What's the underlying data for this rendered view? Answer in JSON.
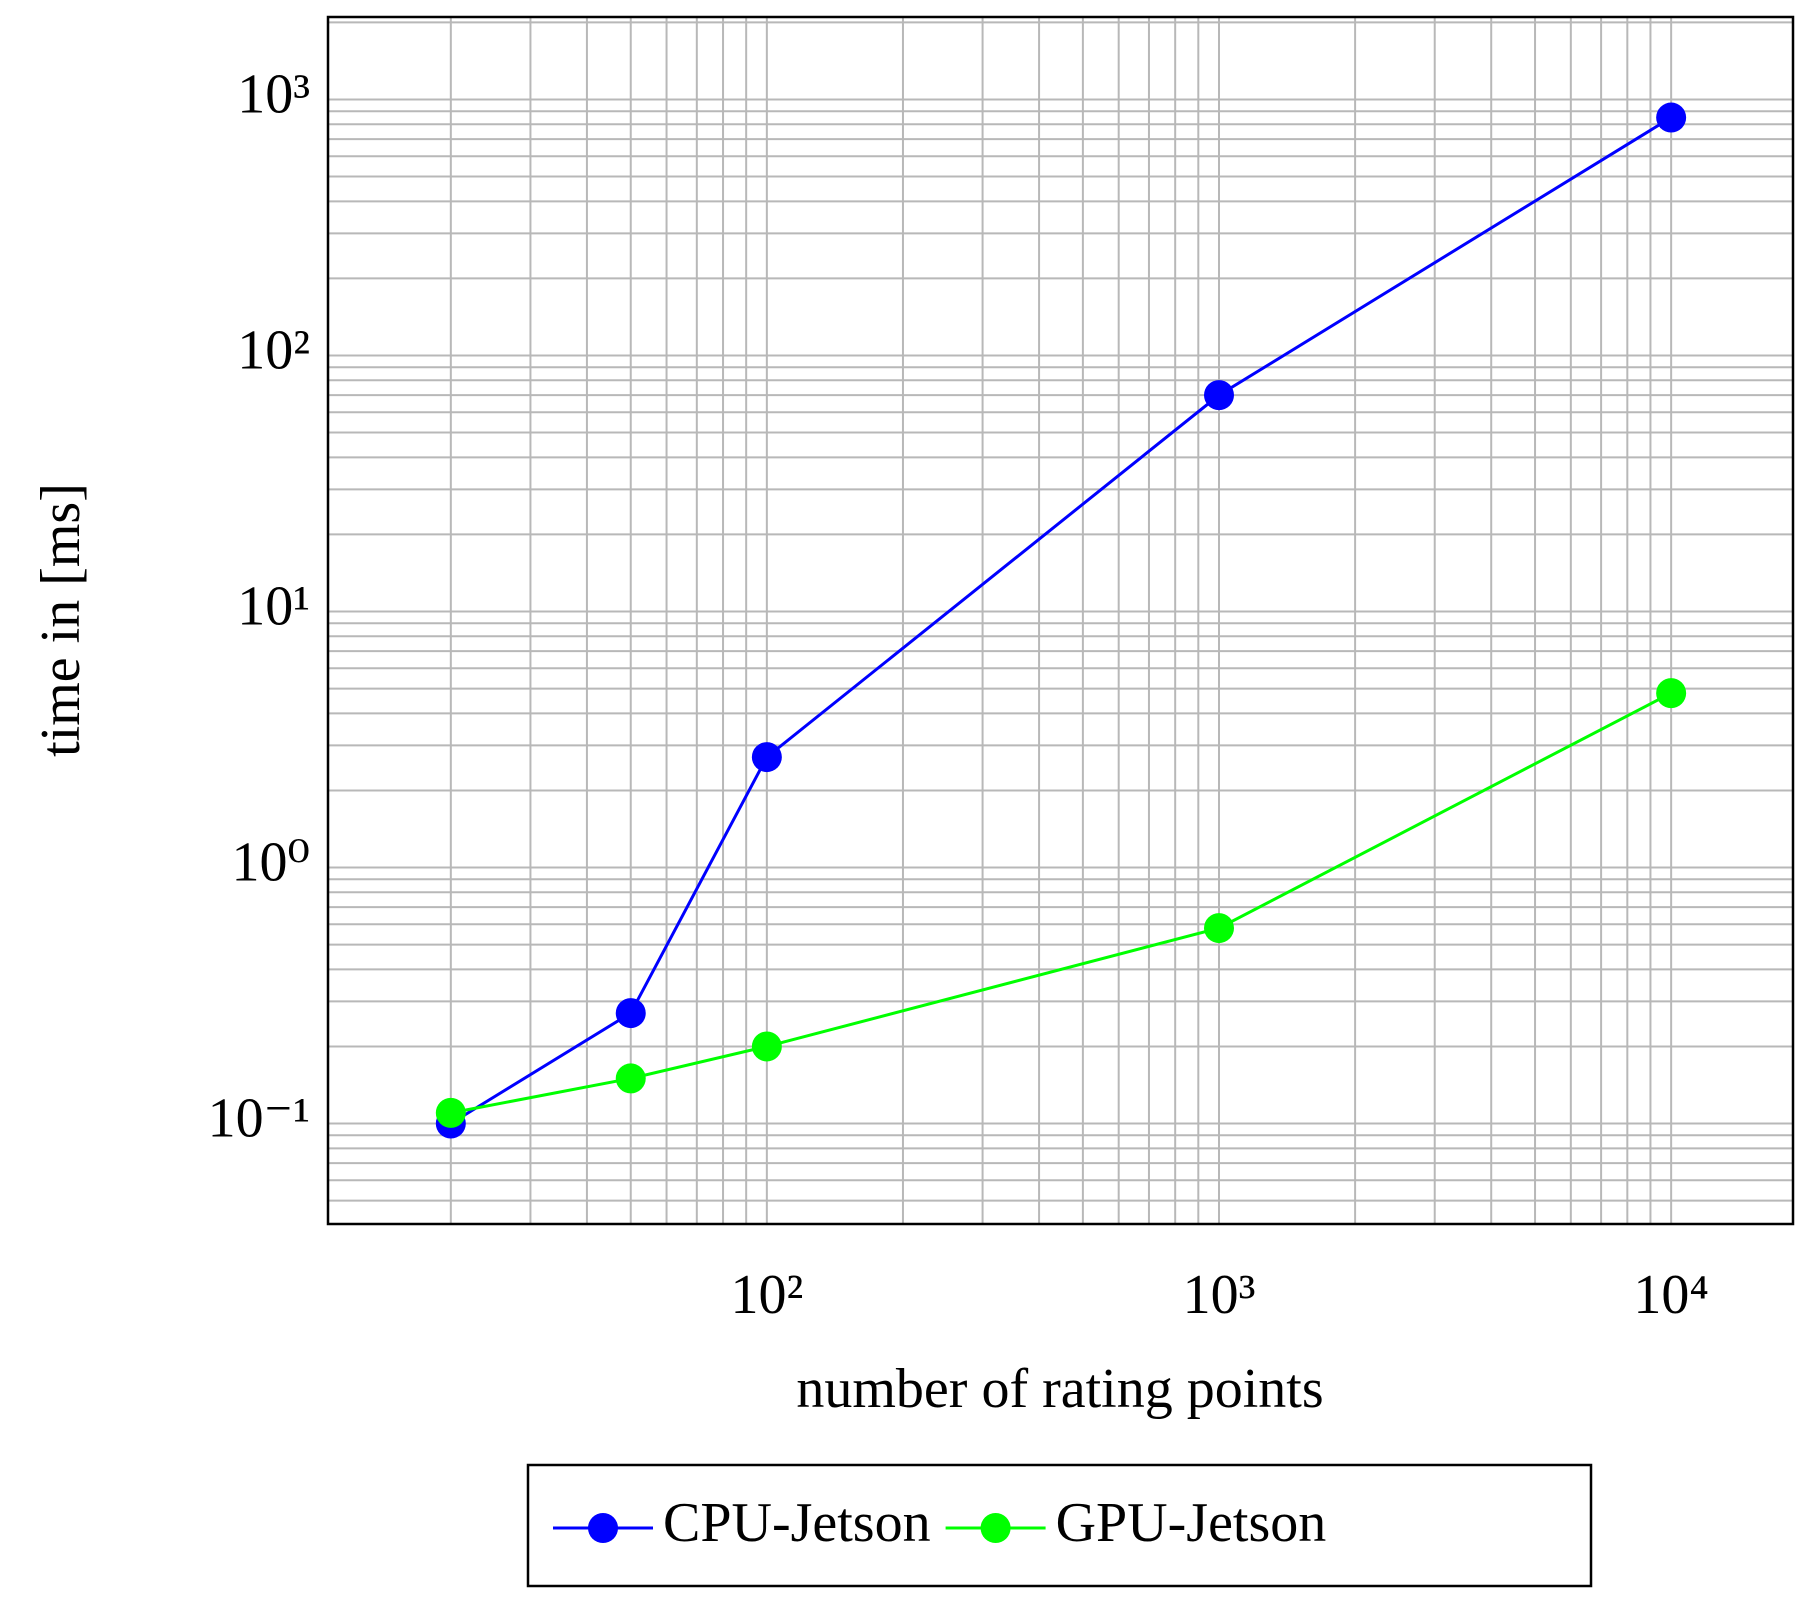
{
  "chart_data": {
    "type": "line",
    "xlabel": "number of rating points",
    "ylabel": "time in [ms]",
    "xscale": "log",
    "yscale": "log",
    "grid": true,
    "x": [
      20,
      50,
      100,
      1000,
      10000
    ],
    "series": [
      {
        "name": "CPU-Jetson",
        "color": "#0000ff",
        "values": [
          0.1,
          0.27,
          2.7,
          70,
          850
        ]
      },
      {
        "name": "GPU-Jetson",
        "color": "#00ff00",
        "values": [
          0.11,
          0.15,
          0.2,
          0.58,
          4.8
        ]
      }
    ],
    "xlim": [
      10.7,
      18600
    ],
    "ylim": [
      0.0405,
      2100
    ],
    "xticks": [
      {
        "value": 100,
        "label": "10²"
      },
      {
        "value": 1000,
        "label": "10³"
      },
      {
        "value": 10000,
        "label": "10⁴"
      }
    ],
    "yticks": [
      {
        "value": 0.1,
        "label": "10⁻¹"
      },
      {
        "value": 1,
        "label": "10⁰"
      },
      {
        "value": 10,
        "label": "10¹"
      },
      {
        "value": 100,
        "label": "10²"
      },
      {
        "value": 1000,
        "label": "10³"
      }
    ],
    "xminorticks": [
      20,
      30,
      40,
      50,
      60,
      70,
      80,
      90,
      200,
      300,
      400,
      500,
      600,
      700,
      800,
      900,
      2000,
      3000,
      4000,
      5000,
      6000,
      7000,
      8000,
      9000
    ],
    "yminorticks": [
      0.05,
      0.06,
      0.07,
      0.08,
      0.09,
      0.2,
      0.3,
      0.4,
      0.5,
      0.6,
      0.7,
      0.8,
      0.9,
      2,
      3,
      4,
      5,
      6,
      7,
      8,
      9,
      20,
      30,
      40,
      50,
      60,
      70,
      80,
      90,
      200,
      300,
      400,
      500,
      600,
      700,
      800,
      900,
      2000
    ],
    "legend": "bottom"
  }
}
